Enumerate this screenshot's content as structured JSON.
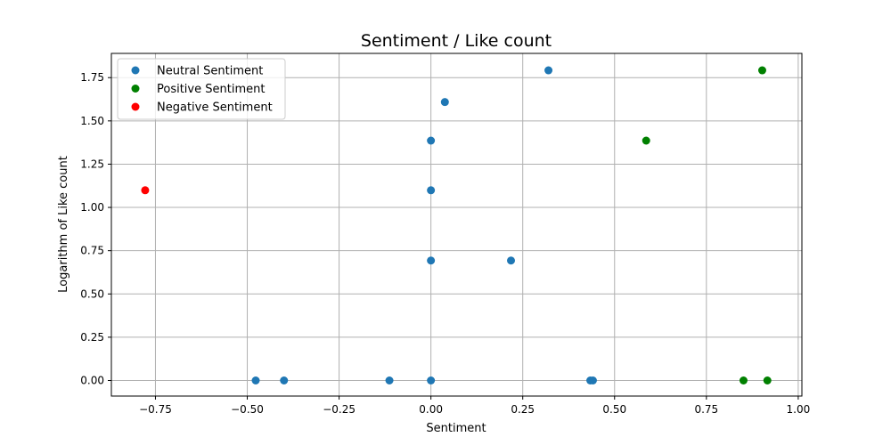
{
  "chart_data": {
    "type": "scatter",
    "title": "Sentiment / Like count",
    "xlabel": "Sentiment",
    "ylabel": "Logarithm of Like count",
    "xlim": [
      -0.87,
      1.01
    ],
    "ylim": [
      -0.09,
      1.89
    ],
    "xticks": [
      -0.75,
      -0.5,
      -0.25,
      0.0,
      0.25,
      0.5,
      0.75,
      1.0
    ],
    "xtick_labels": [
      "−0.75",
      "−0.50",
      "−0.25",
      "0.00",
      "0.25",
      "0.50",
      "0.75",
      "1.00"
    ],
    "yticks": [
      0.0,
      0.25,
      0.5,
      0.75,
      1.0,
      1.25,
      1.5,
      1.75
    ],
    "ytick_labels": [
      "0.00",
      "0.25",
      "0.50",
      "0.75",
      "1.00",
      "1.25",
      "1.50",
      "1.75"
    ],
    "grid": true,
    "legend_position": "top-left",
    "series": [
      {
        "name": "Neutral Sentiment",
        "color": "#1f77b4",
        "points": [
          {
            "x": -0.477,
            "y": 0.0
          },
          {
            "x": -0.4,
            "y": 0.0
          },
          {
            "x": -0.113,
            "y": 0.0
          },
          {
            "x": 0.0,
            "y": 0.0
          },
          {
            "x": 0.0,
            "y": 0.693
          },
          {
            "x": 0.0,
            "y": 1.099
          },
          {
            "x": 0.0,
            "y": 1.386
          },
          {
            "x": 0.038,
            "y": 1.609
          },
          {
            "x": 0.218,
            "y": 0.693
          },
          {
            "x": 0.32,
            "y": 1.792
          },
          {
            "x": 0.434,
            "y": 0.0
          },
          {
            "x": 0.441,
            "y": 0.0
          }
        ]
      },
      {
        "name": "Positive Sentiment",
        "color": "#008000",
        "points": [
          {
            "x": 0.586,
            "y": 1.386
          },
          {
            "x": 0.851,
            "y": 0.0
          },
          {
            "x": 0.902,
            "y": 1.792
          },
          {
            "x": 0.916,
            "y": 0.0
          }
        ]
      },
      {
        "name": "Negative Sentiment",
        "color": "#ff0000",
        "points": [
          {
            "x": -0.778,
            "y": 1.099
          }
        ]
      }
    ]
  }
}
